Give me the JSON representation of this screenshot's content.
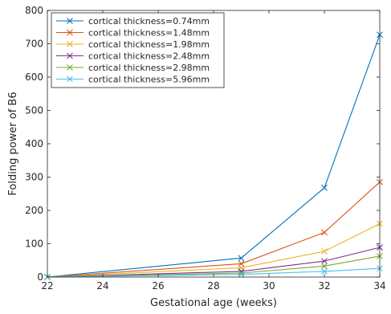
{
  "chart_data": {
    "type": "line",
    "title": "",
    "xlabel": "Gestational age (weeks)",
    "ylabel": "Folding power of B6",
    "xlim": [
      22,
      34
    ],
    "ylim": [
      0,
      800
    ],
    "xticks": [
      22,
      24,
      26,
      28,
      30,
      32,
      34
    ],
    "yticks": [
      0,
      100,
      200,
      300,
      400,
      500,
      600,
      700,
      800
    ],
    "grid": false,
    "legend_position": "top-left",
    "marker": "x",
    "x": [
      22,
      29,
      32,
      34
    ],
    "series": [
      {
        "name": "cortical thickness=0.74mm",
        "color": "#0072BD",
        "values": [
          0,
          57,
          268,
          727
        ]
      },
      {
        "name": "cortical thickness=1.48mm",
        "color": "#D95319",
        "values": [
          0,
          40,
          134,
          285
        ]
      },
      {
        "name": "cortical thickness=1.98mm",
        "color": "#EDB120",
        "values": [
          0,
          28,
          77,
          160
        ]
      },
      {
        "name": "cortical thickness=2.48mm",
        "color": "#7E2F8E",
        "values": [
          0,
          17,
          48,
          89
        ]
      },
      {
        "name": "cortical thickness=2.98mm",
        "color": "#77AC30",
        "values": [
          0,
          12,
          33,
          63
        ]
      },
      {
        "name": "cortical thickness=5.96mm",
        "color": "#4DBEEE",
        "values": [
          0,
          8,
          17,
          26
        ]
      }
    ]
  }
}
